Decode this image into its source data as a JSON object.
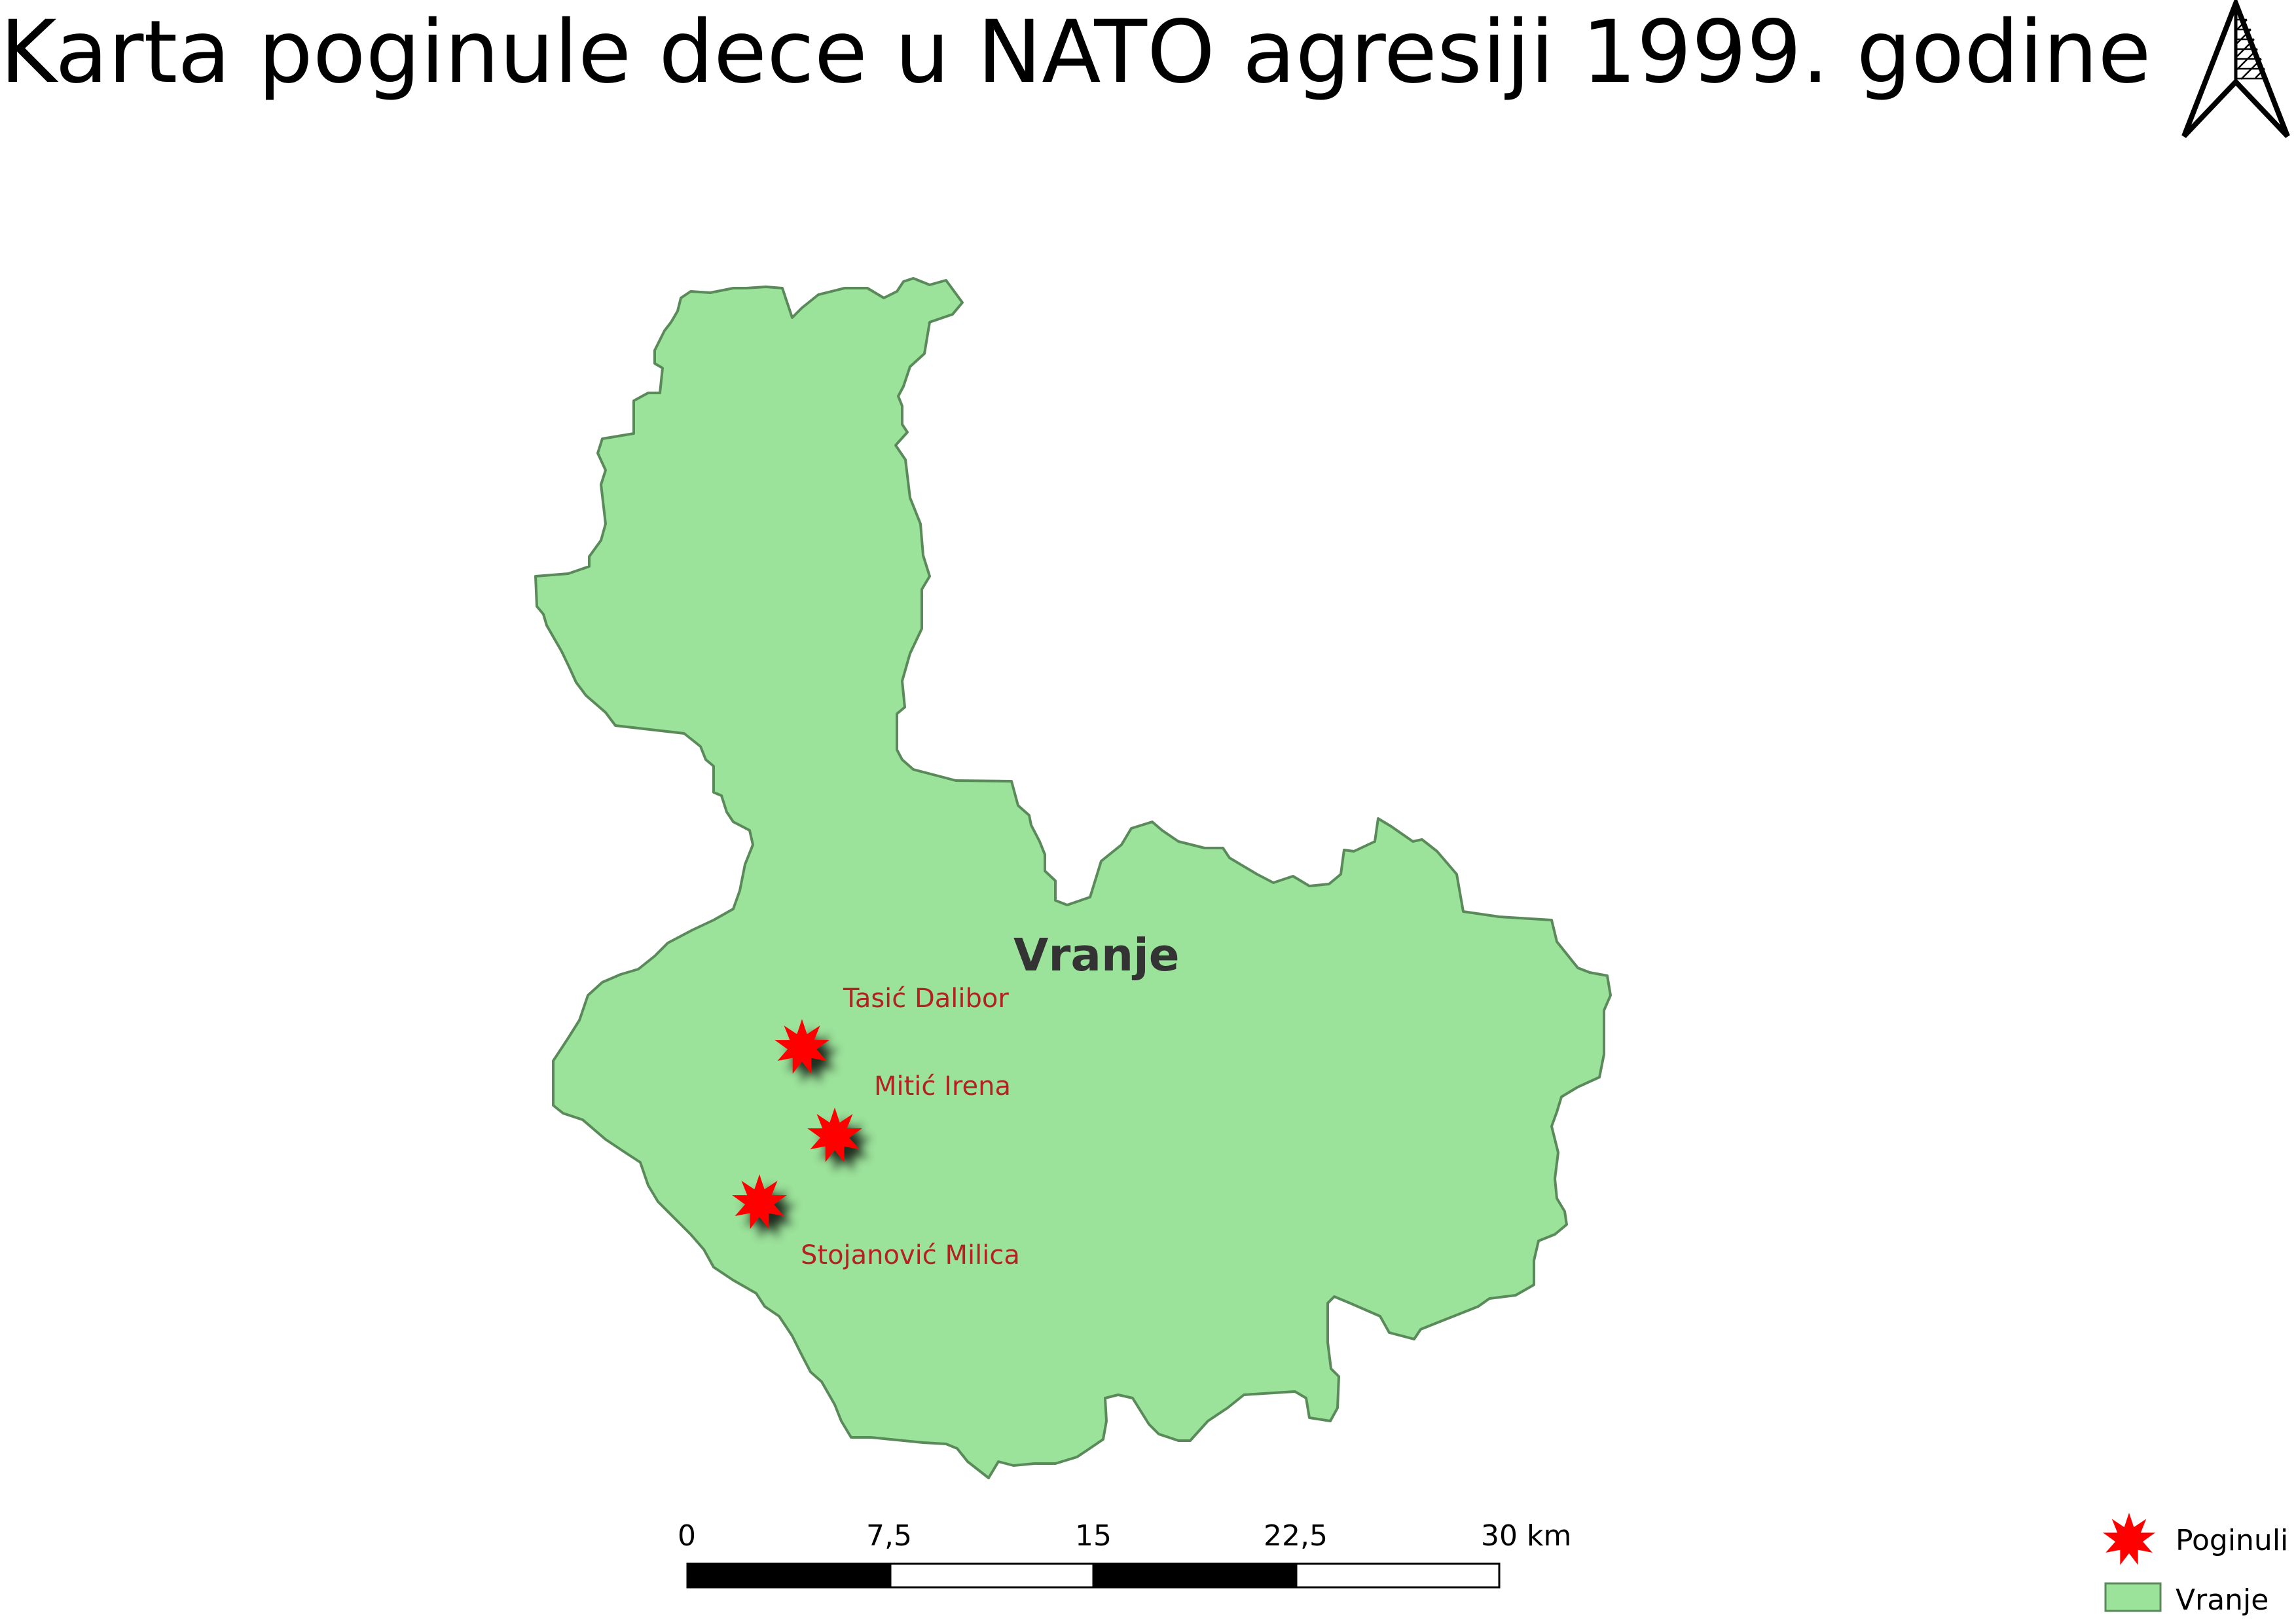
{
  "map": {
    "title": "Karta poginule dece u NATO agresiji 1999. godine",
    "region": {
      "name": "Vranje",
      "fill_color": "#9be29a",
      "stroke_color": "#5a8a5a"
    },
    "markers": {
      "color": "#ff0000",
      "items": [
        {
          "label": "Tasić Dalibor"
        },
        {
          "label": "Mitić Irena"
        },
        {
          "label": "Stojanović Milica"
        }
      ]
    },
    "scale_bar": {
      "ticks": [
        "0",
        "7,5",
        "15",
        "22,5",
        "30 km"
      ]
    },
    "legend": {
      "items": [
        {
          "label": "Poginuli",
          "symbol": "red-star-icon"
        },
        {
          "label": "Vranje",
          "symbol": "green-area-swatch"
        }
      ]
    },
    "north_arrow": {
      "icon": "north-arrow-icon"
    }
  }
}
